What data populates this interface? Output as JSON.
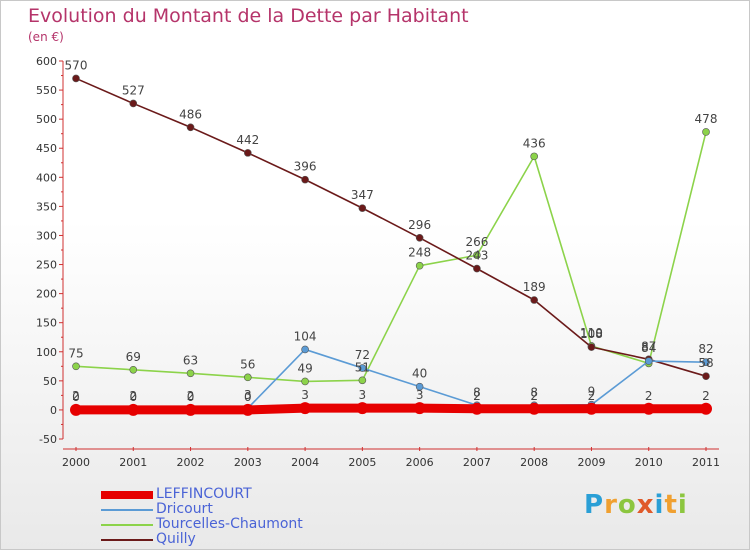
{
  "title": "Evolution du Montant de la Dette par Habitant",
  "unit": "(en €)",
  "logo_text": "Proxiti",
  "chart_data": {
    "type": "line",
    "title": "Evolution du Montant de la Dette par Habitant",
    "subtitle": "(en €)",
    "xlabel": "",
    "ylabel": "",
    "x": [
      "2000",
      "2001",
      "2002",
      "2003",
      "2004",
      "2005",
      "2006",
      "2007",
      "2008",
      "2009",
      "2010",
      "2011"
    ],
    "ylim": [
      -50,
      600
    ],
    "yticks": [
      "-50",
      "0",
      "50",
      "100",
      "150",
      "200",
      "250",
      "300",
      "350",
      "400",
      "450",
      "500",
      "550",
      "600"
    ],
    "grid": false,
    "legend_position": "bottom-left",
    "series": [
      {
        "name": "LEFFINCOURT",
        "color": "#e60000",
        "values": [
          0,
          0,
          0,
          0,
          3,
          3,
          3,
          2,
          2,
          2,
          2,
          2
        ],
        "labels": [
          "0",
          "0",
          "0",
          "0",
          "3",
          "3",
          "3",
          "2",
          "2",
          "2",
          "2",
          "2"
        ]
      },
      {
        "name": "Dricourt",
        "color": "#5b9bd5",
        "values": [
          2,
          2,
          2,
          3,
          104,
          72,
          40,
          8,
          8,
          9,
          84,
          82
        ],
        "labels": [
          "2",
          "2",
          "2",
          "3",
          "104",
          "72",
          "40",
          "8",
          "8",
          "9",
          "84",
          "82"
        ]
      },
      {
        "name": "Tourcelles-Chaumont",
        "color": "#8cd34a",
        "values": [
          75,
          69,
          63,
          56,
          49,
          51,
          248,
          266,
          436,
          110,
          80,
          478
        ],
        "labels": [
          "75",
          "69",
          "63",
          "56",
          "49",
          "51",
          "248",
          "266",
          "436",
          "110",
          "",
          "478"
        ]
      },
      {
        "name": "Quilly",
        "color": "#6b1a1a",
        "values": [
          570,
          527,
          486,
          442,
          396,
          347,
          296,
          243,
          189,
          108,
          87,
          58
        ],
        "labels": [
          "570",
          "527",
          "486",
          "442",
          "396",
          "347",
          "296",
          "243",
          "189",
          "108",
          "87",
          "58"
        ]
      }
    ]
  }
}
